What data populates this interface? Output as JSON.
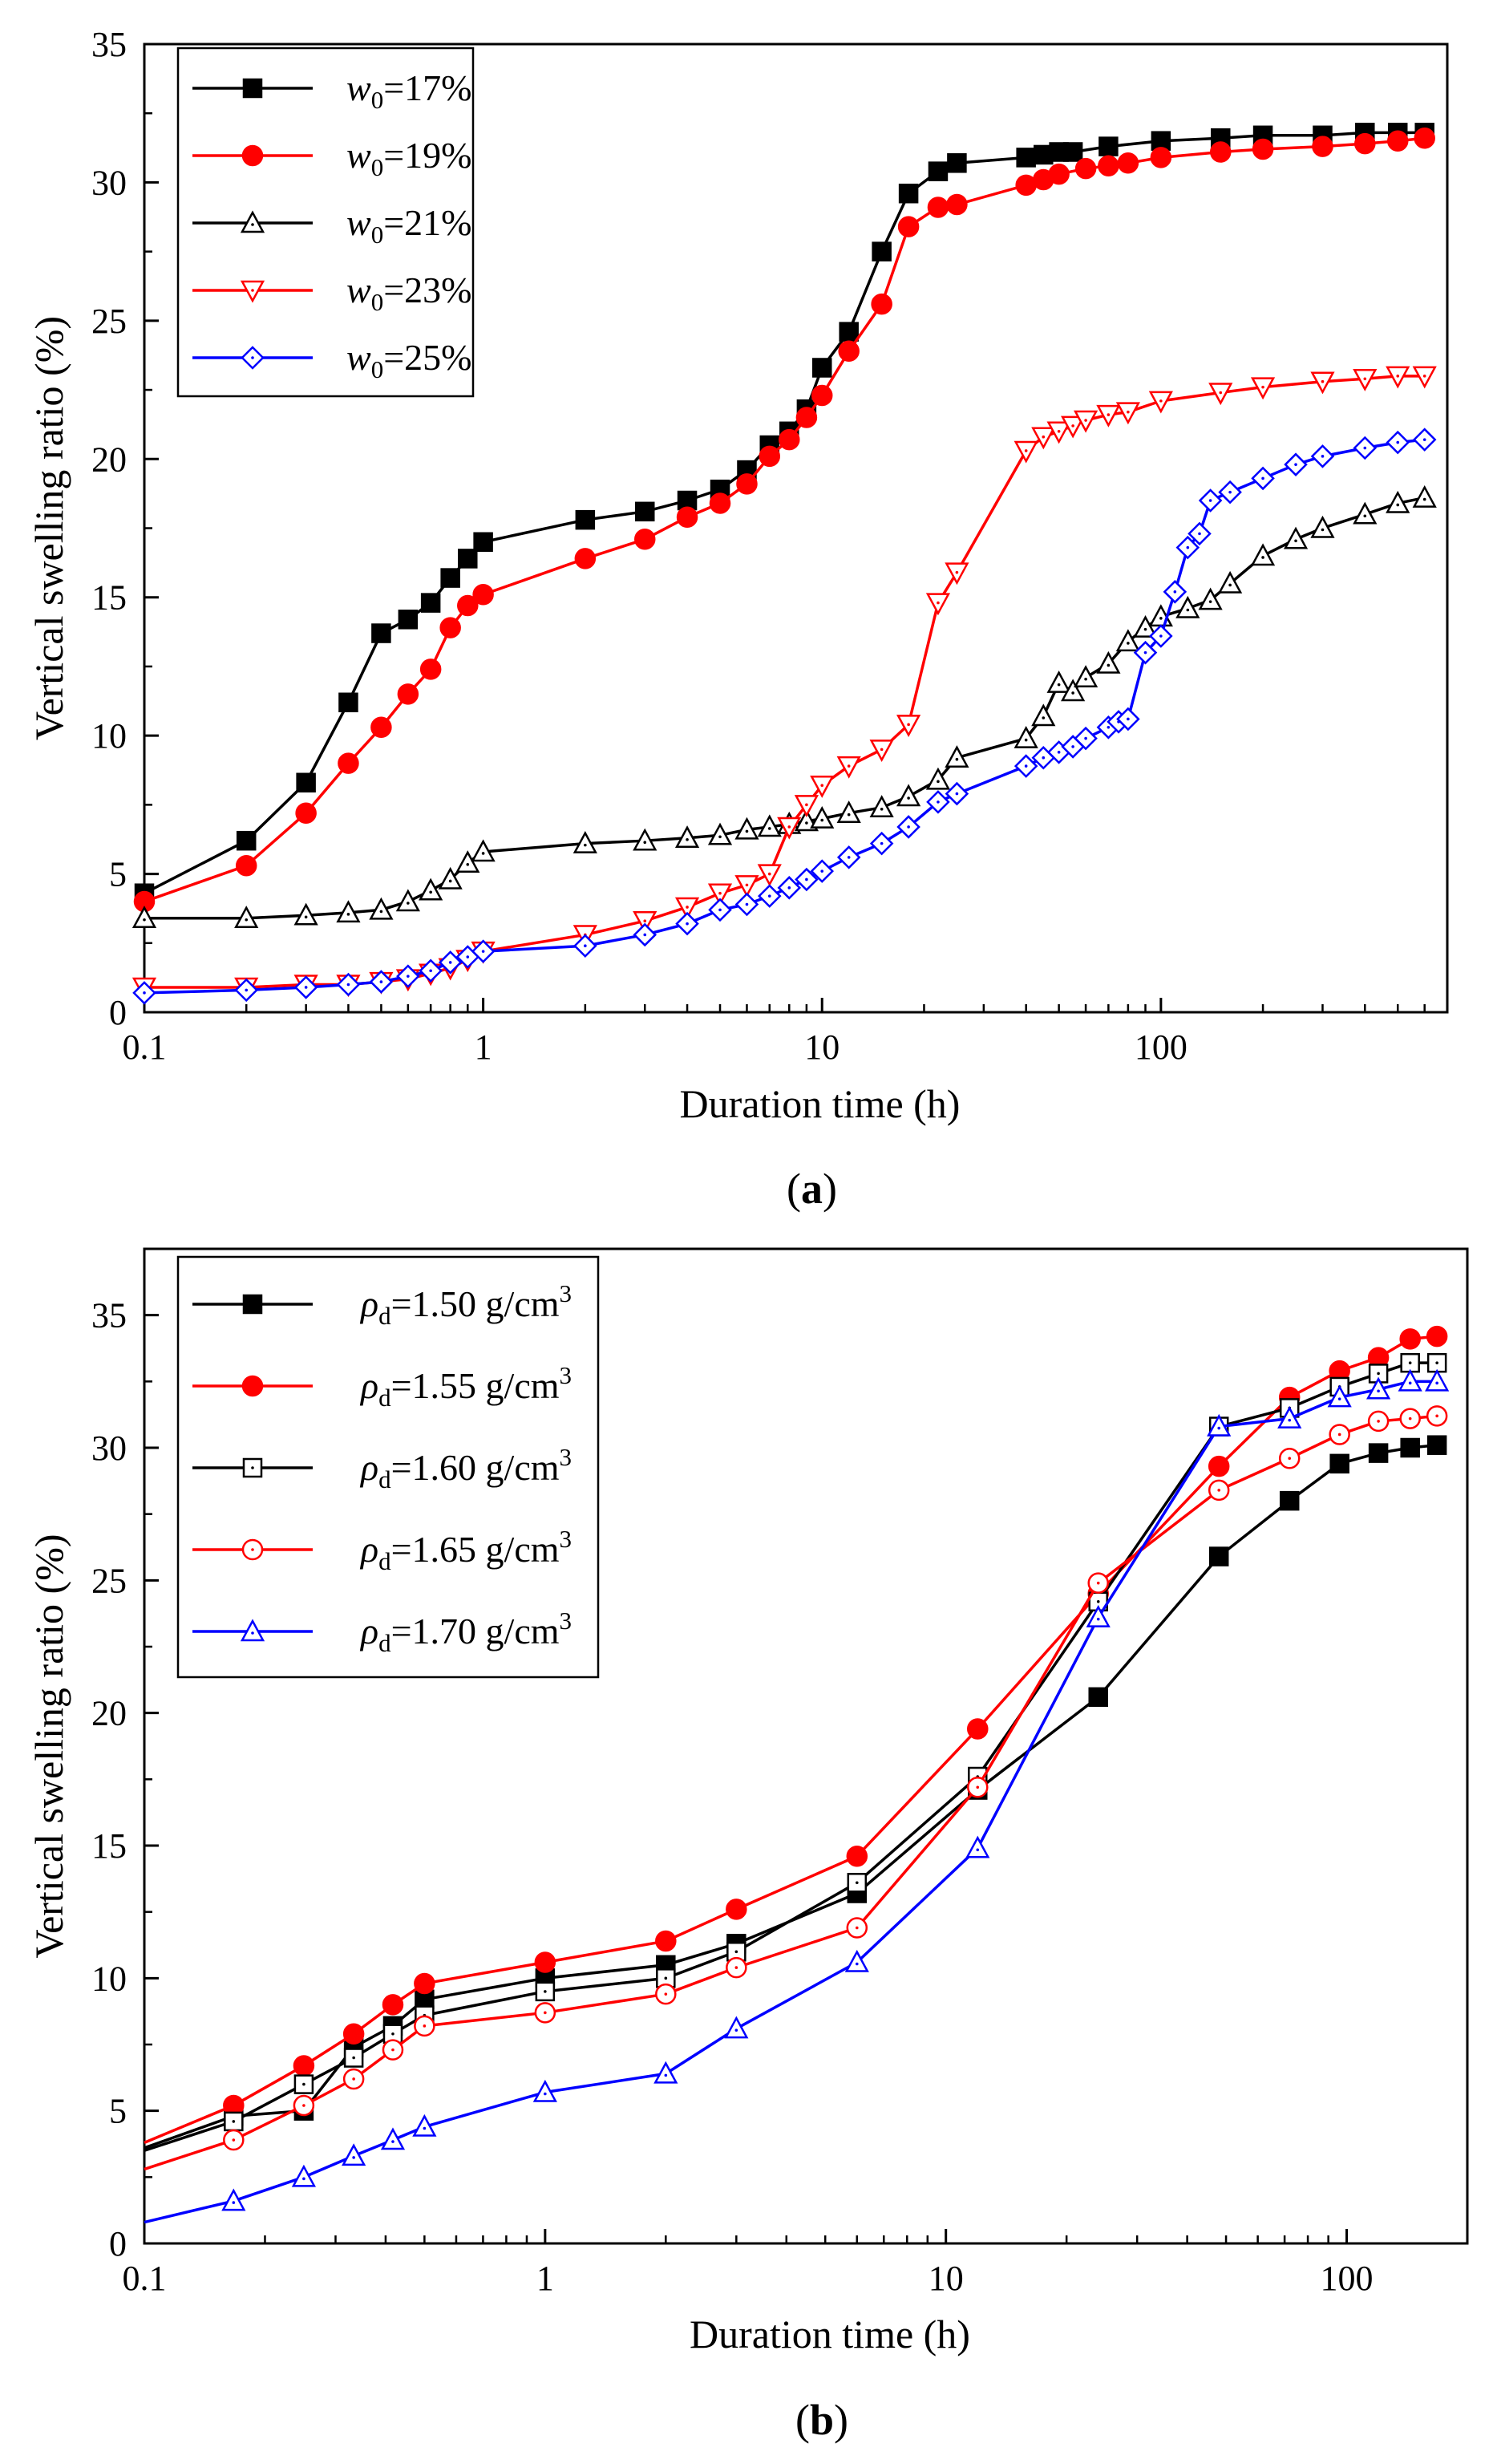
{
  "chart_data": [
    {
      "type": "line",
      "caption": "a",
      "xlabel": "Duration time (h)",
      "ylabel": "Vertical swelling ratio (%)",
      "xscale": "log",
      "xlim": [
        0.1,
        700
      ],
      "ylim": [
        0,
        35
      ],
      "xticks": [
        0.1,
        1,
        10,
        100
      ],
      "xtick_labels": [
        "0.1",
        "1",
        "10",
        "100"
      ],
      "yticks": [
        0,
        5,
        10,
        15,
        20,
        25,
        30,
        35
      ],
      "legend_position": "top-left",
      "series": [
        {
          "name": "w0=17%",
          "sym": "w",
          "sub": "0",
          "tail": "=17%",
          "color": "#000000",
          "marker": "square",
          "filled": true,
          "x": [
            0.1,
            0.2,
            0.3,
            0.4,
            0.5,
            0.6,
            0.7,
            0.8,
            0.9,
            1,
            2,
            3,
            4,
            5,
            6,
            7,
            8,
            9,
            10,
            12,
            15,
            18,
            22,
            25,
            40,
            45,
            50,
            55,
            70,
            100,
            150,
            200,
            300,
            400,
            500,
            600
          ],
          "y": [
            4.3,
            6.2,
            8.3,
            11.2,
            13.7,
            14.2,
            14.8,
            15.7,
            16.4,
            17.0,
            17.8,
            18.1,
            18.5,
            18.9,
            19.6,
            20.5,
            21.0,
            21.8,
            23.3,
            24.6,
            27.5,
            29.6,
            30.4,
            30.7,
            30.9,
            31.0,
            31.1,
            31.1,
            31.3,
            31.5,
            31.6,
            31.7,
            31.7,
            31.8,
            31.8,
            31.8
          ]
        },
        {
          "name": "w0=19%",
          "sym": "w",
          "sub": "0",
          "tail": "=19%",
          "color": "#ff0000",
          "marker": "circle",
          "filled": true,
          "x": [
            0.1,
            0.2,
            0.3,
            0.4,
            0.5,
            0.6,
            0.7,
            0.8,
            0.9,
            1,
            2,
            3,
            4,
            5,
            6,
            7,
            8,
            9,
            10,
            12,
            15,
            18,
            22,
            25,
            40,
            45,
            50,
            60,
            70,
            80,
            100,
            150,
            200,
            300,
            400,
            500,
            600
          ],
          "y": [
            4.0,
            5.3,
            7.2,
            9.0,
            10.3,
            11.5,
            12.4,
            13.9,
            14.7,
            15.1,
            16.4,
            17.1,
            17.9,
            18.4,
            19.1,
            20.1,
            20.7,
            21.5,
            22.3,
            23.9,
            25.6,
            28.4,
            29.1,
            29.2,
            29.9,
            30.1,
            30.3,
            30.5,
            30.6,
            30.7,
            30.9,
            31.1,
            31.2,
            31.3,
            31.4,
            31.5,
            31.6
          ]
        },
        {
          "name": "w0=21%",
          "sym": "w",
          "sub": "0",
          "tail": "=21%",
          "color": "#000000",
          "marker": "triangle-up",
          "filled": false,
          "x": [
            0.1,
            0.2,
            0.3,
            0.4,
            0.5,
            0.6,
            0.7,
            0.8,
            0.9,
            1,
            2,
            3,
            4,
            5,
            6,
            7,
            8,
            9,
            10,
            12,
            15,
            18,
            22,
            25,
            40,
            45,
            50,
            55,
            60,
            70,
            80,
            90,
            100,
            120,
            140,
            160,
            200,
            250,
            300,
            400,
            500,
            600
          ],
          "y": [
            3.4,
            3.4,
            3.5,
            3.6,
            3.7,
            4.0,
            4.4,
            4.8,
            5.4,
            5.8,
            6.1,
            6.2,
            6.3,
            6.4,
            6.6,
            6.7,
            6.8,
            6.9,
            7.0,
            7.2,
            7.4,
            7.8,
            8.4,
            9.2,
            9.9,
            10.7,
            11.9,
            11.6,
            12.1,
            12.6,
            13.4,
            13.9,
            14.3,
            14.6,
            14.9,
            15.5,
            16.5,
            17.1,
            17.5,
            18.0,
            18.4,
            18.6
          ]
        },
        {
          "name": "w0=23%",
          "sym": "w",
          "sub": "0",
          "tail": "=23%",
          "color": "#ff0000",
          "marker": "triangle-down",
          "filled": false,
          "x": [
            0.1,
            0.2,
            0.3,
            0.4,
            0.5,
            0.6,
            0.7,
            0.8,
            0.9,
            1,
            2,
            3,
            4,
            5,
            6,
            7,
            8,
            9,
            10,
            12,
            15,
            18,
            22,
            25,
            40,
            45,
            50,
            55,
            60,
            70,
            80,
            100,
            150,
            200,
            300,
            400,
            500,
            600
          ],
          "y": [
            0.9,
            0.9,
            1.0,
            1.0,
            1.1,
            1.2,
            1.4,
            1.6,
            1.9,
            2.2,
            2.8,
            3.3,
            3.8,
            4.3,
            4.6,
            5.0,
            6.7,
            7.5,
            8.2,
            8.9,
            9.5,
            10.4,
            14.8,
            15.9,
            20.3,
            20.8,
            21.0,
            21.2,
            21.4,
            21.6,
            21.7,
            22.1,
            22.4,
            22.6,
            22.8,
            22.9,
            23.0,
            23.0
          ]
        },
        {
          "name": "w0=25%",
          "sym": "w",
          "sub": "0",
          "tail": "=25%",
          "color": "#0000ff",
          "marker": "diamond",
          "filled": false,
          "x": [
            0.1,
            0.2,
            0.3,
            0.4,
            0.5,
            0.6,
            0.7,
            0.8,
            0.9,
            1,
            2,
            3,
            4,
            5,
            6,
            7,
            8,
            9,
            10,
            12,
            15,
            18,
            22,
            25,
            40,
            45,
            50,
            55,
            60,
            70,
            75,
            80,
            90,
            100,
            110,
            120,
            130,
            140,
            160,
            200,
            250,
            300,
            400,
            500,
            600
          ],
          "y": [
            0.7,
            0.8,
            0.9,
            1.0,
            1.1,
            1.3,
            1.5,
            1.8,
            2.0,
            2.2,
            2.4,
            2.8,
            3.2,
            3.7,
            3.9,
            4.2,
            4.5,
            4.8,
            5.1,
            5.6,
            6.1,
            6.7,
            7.6,
            7.9,
            8.9,
            9.2,
            9.4,
            9.6,
            9.9,
            10.3,
            10.5,
            10.6,
            13.0,
            13.6,
            15.2,
            16.8,
            17.3,
            18.5,
            18.8,
            19.3,
            19.8,
            20.1,
            20.4,
            20.6,
            20.7
          ]
        }
      ]
    },
    {
      "type": "line",
      "caption": "b",
      "xlabel": "Duration time (h)",
      "ylabel": "Vertical swelling ratio (%)",
      "xscale": "log",
      "xlim": [
        0.1,
        200
      ],
      "ylim": [
        0,
        37.5
      ],
      "xticks": [
        0.1,
        1,
        10,
        100
      ],
      "xtick_labels": [
        "0.1",
        "1",
        "10",
        "100"
      ],
      "yticks": [
        0,
        5,
        10,
        15,
        20,
        25,
        30,
        35
      ],
      "legend_position": "top-left",
      "series": [
        {
          "name": "ρd=1.50 g/cm3",
          "sym": "ρ",
          "sub": "d",
          "tail": "=1.50 g/cm",
          "sup": "3",
          "color": "#000000",
          "marker": "square",
          "filled": true,
          "x": [
            0.167,
            0.25,
            0.333,
            0.417,
            0.5,
            1,
            2,
            3,
            6,
            12,
            24,
            48,
            72,
            96,
            120,
            144,
            168
          ],
          "y": [
            4.8,
            5.0,
            7.4,
            8.2,
            9.2,
            10.0,
            10.5,
            11.3,
            13.2,
            17.1,
            20.6,
            25.9,
            28.0,
            29.4,
            29.8,
            30.0,
            30.1
          ],
          "line_start": 3.6
        },
        {
          "name": "ρd=1.55 g/cm3",
          "sym": "ρ",
          "sub": "d",
          "tail": "=1.55 g/cm",
          "sup": "3",
          "color": "#ff0000",
          "marker": "circle",
          "filled": true,
          "x": [
            0.167,
            0.25,
            0.333,
            0.417,
            0.5,
            1,
            2,
            3,
            6,
            12,
            24,
            48,
            72,
            96,
            120,
            144,
            168
          ],
          "y": [
            5.2,
            6.7,
            7.9,
            9.0,
            9.8,
            10.6,
            11.4,
            12.6,
            14.6,
            19.4,
            24.5,
            29.3,
            31.9,
            32.9,
            33.4,
            34.1,
            34.2
          ],
          "line_start": 3.8
        },
        {
          "name": "ρd=1.60 g/cm3",
          "sym": "ρ",
          "sub": "d",
          "tail": "=1.60 g/cm",
          "sup": "3",
          "color": "#000000",
          "marker": "square-dot",
          "filled": false,
          "x": [
            0.167,
            0.25,
            0.333,
            0.417,
            0.5,
            1,
            2,
            3,
            6,
            12,
            24,
            48,
            72,
            96,
            120,
            144,
            168
          ],
          "y": [
            4.6,
            6.0,
            7.0,
            7.9,
            8.6,
            9.5,
            10.0,
            11.0,
            13.6,
            17.6,
            24.2,
            30.8,
            31.5,
            32.3,
            32.8,
            33.2,
            33.2
          ],
          "line_start": 3.5
        },
        {
          "name": "ρd=1.65 g/cm3",
          "sym": "ρ",
          "sub": "d",
          "tail": "=1.65 g/cm",
          "sup": "3",
          "color": "#ff0000",
          "marker": "circle-dot",
          "filled": false,
          "x": [
            0.167,
            0.25,
            0.333,
            0.417,
            0.5,
            1,
            2,
            3,
            6,
            12,
            24,
            48,
            72,
            96,
            120,
            144,
            168
          ],
          "y": [
            3.9,
            5.2,
            6.2,
            7.3,
            8.2,
            8.7,
            9.4,
            10.4,
            11.9,
            17.2,
            24.9,
            28.4,
            29.6,
            30.5,
            31.0,
            31.1,
            31.2
          ],
          "line_start": 2.8
        },
        {
          "name": "ρd=1.70 g/cm3",
          "sym": "ρ",
          "sub": "d",
          "tail": "=1.70 g/cm",
          "sup": "3",
          "color": "#0000ff",
          "marker": "triangle-up",
          "filled": false,
          "x": [
            0.167,
            0.25,
            0.333,
            0.417,
            0.5,
            1,
            2,
            3,
            6,
            12,
            24,
            48,
            72,
            96,
            120,
            144,
            168
          ],
          "y": [
            1.6,
            2.5,
            3.3,
            3.9,
            4.4,
            5.7,
            6.4,
            8.1,
            10.6,
            14.9,
            23.6,
            30.8,
            31.1,
            31.9,
            32.2,
            32.5,
            32.5
          ],
          "line_start": 0.8
        }
      ]
    }
  ]
}
